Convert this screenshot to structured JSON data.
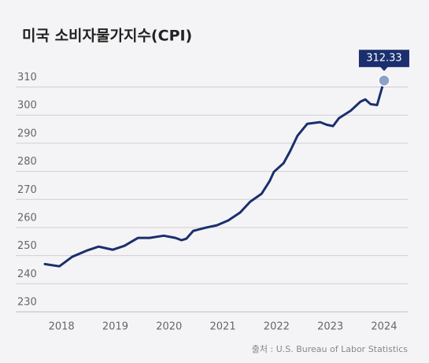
{
  "chart_data": {
    "type": "line",
    "title": "미국 소비자물가지수(CPI)",
    "source": "출처 : U.S. Bureau of Labor Statistics",
    "x": [
      2017.69,
      2017.96,
      2018.2,
      2018.47,
      2018.69,
      2018.95,
      2019.17,
      2019.42,
      2019.64,
      2019.9,
      2020.12,
      2020.23,
      2020.32,
      2020.45,
      2020.67,
      2020.89,
      2021.1,
      2021.32,
      2021.51,
      2021.72,
      2021.87,
      2021.95,
      2022.13,
      2022.25,
      2022.39,
      2022.57,
      2022.81,
      2022.93,
      2023.05,
      2023.16,
      2023.38,
      2023.56,
      2023.65,
      2023.75,
      2023.87,
      2024.0
    ],
    "series": [
      {
        "name": "CPI",
        "color": "#1b2f6e",
        "values": [
          247.0,
          246.2,
          249.6,
          251.8,
          253.2,
          252.1,
          253.5,
          256.3,
          256.3,
          257.1,
          256.3,
          255.5,
          256.0,
          258.8,
          259.9,
          260.8,
          262.5,
          265.3,
          269.2,
          272.0,
          276.5,
          279.8,
          282.9,
          287.1,
          292.7,
          296.9,
          297.5,
          296.6,
          296.1,
          298.9,
          301.6,
          304.8,
          305.6,
          303.9,
          303.6,
          312.33
        ]
      }
    ],
    "xlim": [
      2017.69,
      2024.44
    ],
    "xticks": [
      2018,
      2019,
      2020,
      2021,
      2022,
      2023,
      2024
    ],
    "ylim": [
      230,
      318
    ],
    "yticks": [
      230,
      240,
      250,
      260,
      270,
      280,
      290,
      300,
      310
    ],
    "grid": true
  }
}
